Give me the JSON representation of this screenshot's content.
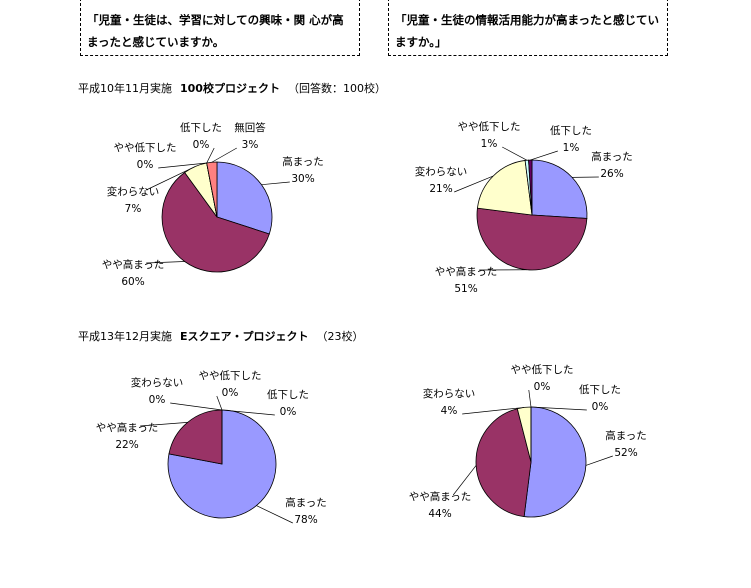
{
  "questions": [
    "「児童・生徒は、学習に対しての興味・関 心が高まったと感じていますか。",
    "「児童・生徒の情報活用能力が高まったと感じていますか。」"
  ],
  "sections": [
    {
      "date": "平成10年11月実施",
      "name": "100校プロジェクト",
      "note": "（回答数：100校）"
    },
    {
      "date": "平成13年12月実施",
      "name": "Eスクエア・プロジェクト",
      "note": "（23校）"
    }
  ],
  "chart_data": [
    {
      "type": "pie",
      "categories": [
        "高まった",
        "やや高まった",
        "変わらない",
        "やや低下した",
        "低下した",
        "無回答"
      ],
      "values": [
        30,
        60,
        7,
        0,
        0,
        3
      ],
      "value_labels": [
        "30%",
        "60%",
        "7%",
        "0%",
        "0%",
        "3%"
      ],
      "colors": [
        "#9999ff",
        "#993366",
        "#ffffcc",
        "#ccffff",
        "#660066",
        "#ff8080"
      ]
    },
    {
      "type": "pie",
      "categories": [
        "高まった",
        "やや高まった",
        "変わらない",
        "やや低下した",
        "低下した"
      ],
      "values": [
        26,
        51,
        21,
        1,
        1
      ],
      "value_labels": [
        "26%",
        "51%",
        "21%",
        "1%",
        "1%"
      ],
      "colors": [
        "#9999ff",
        "#993366",
        "#ffffcc",
        "#ccffff",
        "#660066"
      ]
    },
    {
      "type": "pie",
      "categories": [
        "高まった",
        "やや高まった",
        "変わらない",
        "やや低下した",
        "低下した"
      ],
      "values": [
        78,
        22,
        0,
        0,
        0
      ],
      "value_labels": [
        "78%",
        "22%",
        "0%",
        "0%",
        "0%"
      ],
      "colors": [
        "#9999ff",
        "#993366",
        "#ffffcc",
        "#ccffff",
        "#660066"
      ]
    },
    {
      "type": "pie",
      "categories": [
        "高まった",
        "やや高まった",
        "変わらない",
        "やや低下した",
        "低下した"
      ],
      "values": [
        52,
        44,
        4,
        0,
        0
      ],
      "value_labels": [
        "52%",
        "44%",
        "4%",
        "0%",
        "0%"
      ],
      "colors": [
        "#9999ff",
        "#993366",
        "#ffffcc",
        "#ccffff",
        "#660066"
      ]
    }
  ]
}
